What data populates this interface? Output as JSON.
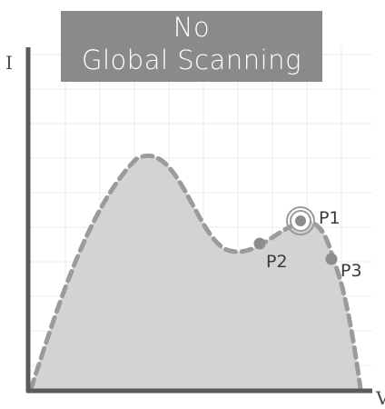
{
  "title": {
    "line1": "No",
    "line2": "Global Scanning"
  },
  "axes": {
    "y_label": "I",
    "x_label": "V"
  },
  "points": [
    {
      "label": "P1",
      "highlighted": true
    },
    {
      "label": "P2",
      "highlighted": false
    },
    {
      "label": "P3",
      "highlighted": false
    }
  ],
  "colors": {
    "title_bg": "#8a8a8a",
    "curve_fill": "#d3d3d3",
    "curve_stroke": "#9b9b9b",
    "axis": "#5a5a5a",
    "grid": "#ebebeb",
    "point": "#8d8d8d"
  }
}
